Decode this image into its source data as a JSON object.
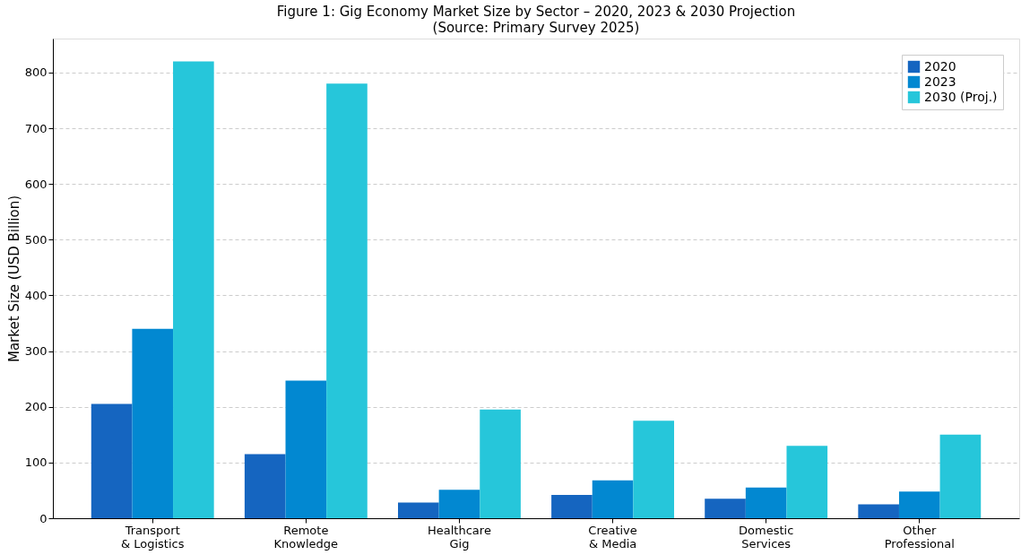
{
  "chart_data": {
    "type": "bar",
    "title": "Figure 1: Gig Economy Market Size by Sector – 2020, 2023 & 2030 Projection",
    "subtitle": "(Source: Primary Survey 2025)",
    "ylabel": "Market Size (USD Billion)",
    "categories": [
      "Transport\n& Logistics",
      "Remote\nKnowledge",
      "Healthcare\nGig",
      "Creative\n& Media",
      "Domestic\nServices",
      "Other\nProfessional"
    ],
    "series": [
      {
        "name": "2020",
        "color": "#1565c0",
        "values": [
          205,
          115,
          28,
          42,
          35,
          25
        ]
      },
      {
        "name": "2023",
        "color": "#0288d1",
        "values": [
          340,
          247,
          51,
          68,
          55,
          48
        ]
      },
      {
        "name": "2030 (Proj.)",
        "color": "#26c6da",
        "values": [
          820,
          780,
          195,
          175,
          130,
          150
        ]
      }
    ],
    "ylim": [
      0,
      861
    ],
    "yticks": [
      0,
      100,
      200,
      300,
      400,
      500,
      600,
      700,
      800
    ],
    "grid": "y",
    "legend": "top right"
  }
}
